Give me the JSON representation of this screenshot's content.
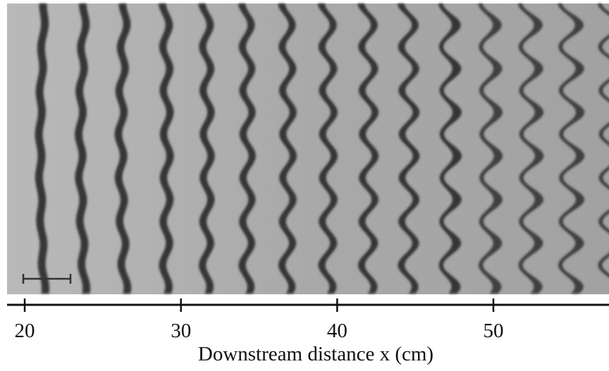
{
  "figure": {
    "xlabel": "Downstream distance  x (cm)",
    "xlim": [
      18.87,
      57.4
    ],
    "xticks": [
      20,
      30,
      40,
      50
    ]
  }
}
